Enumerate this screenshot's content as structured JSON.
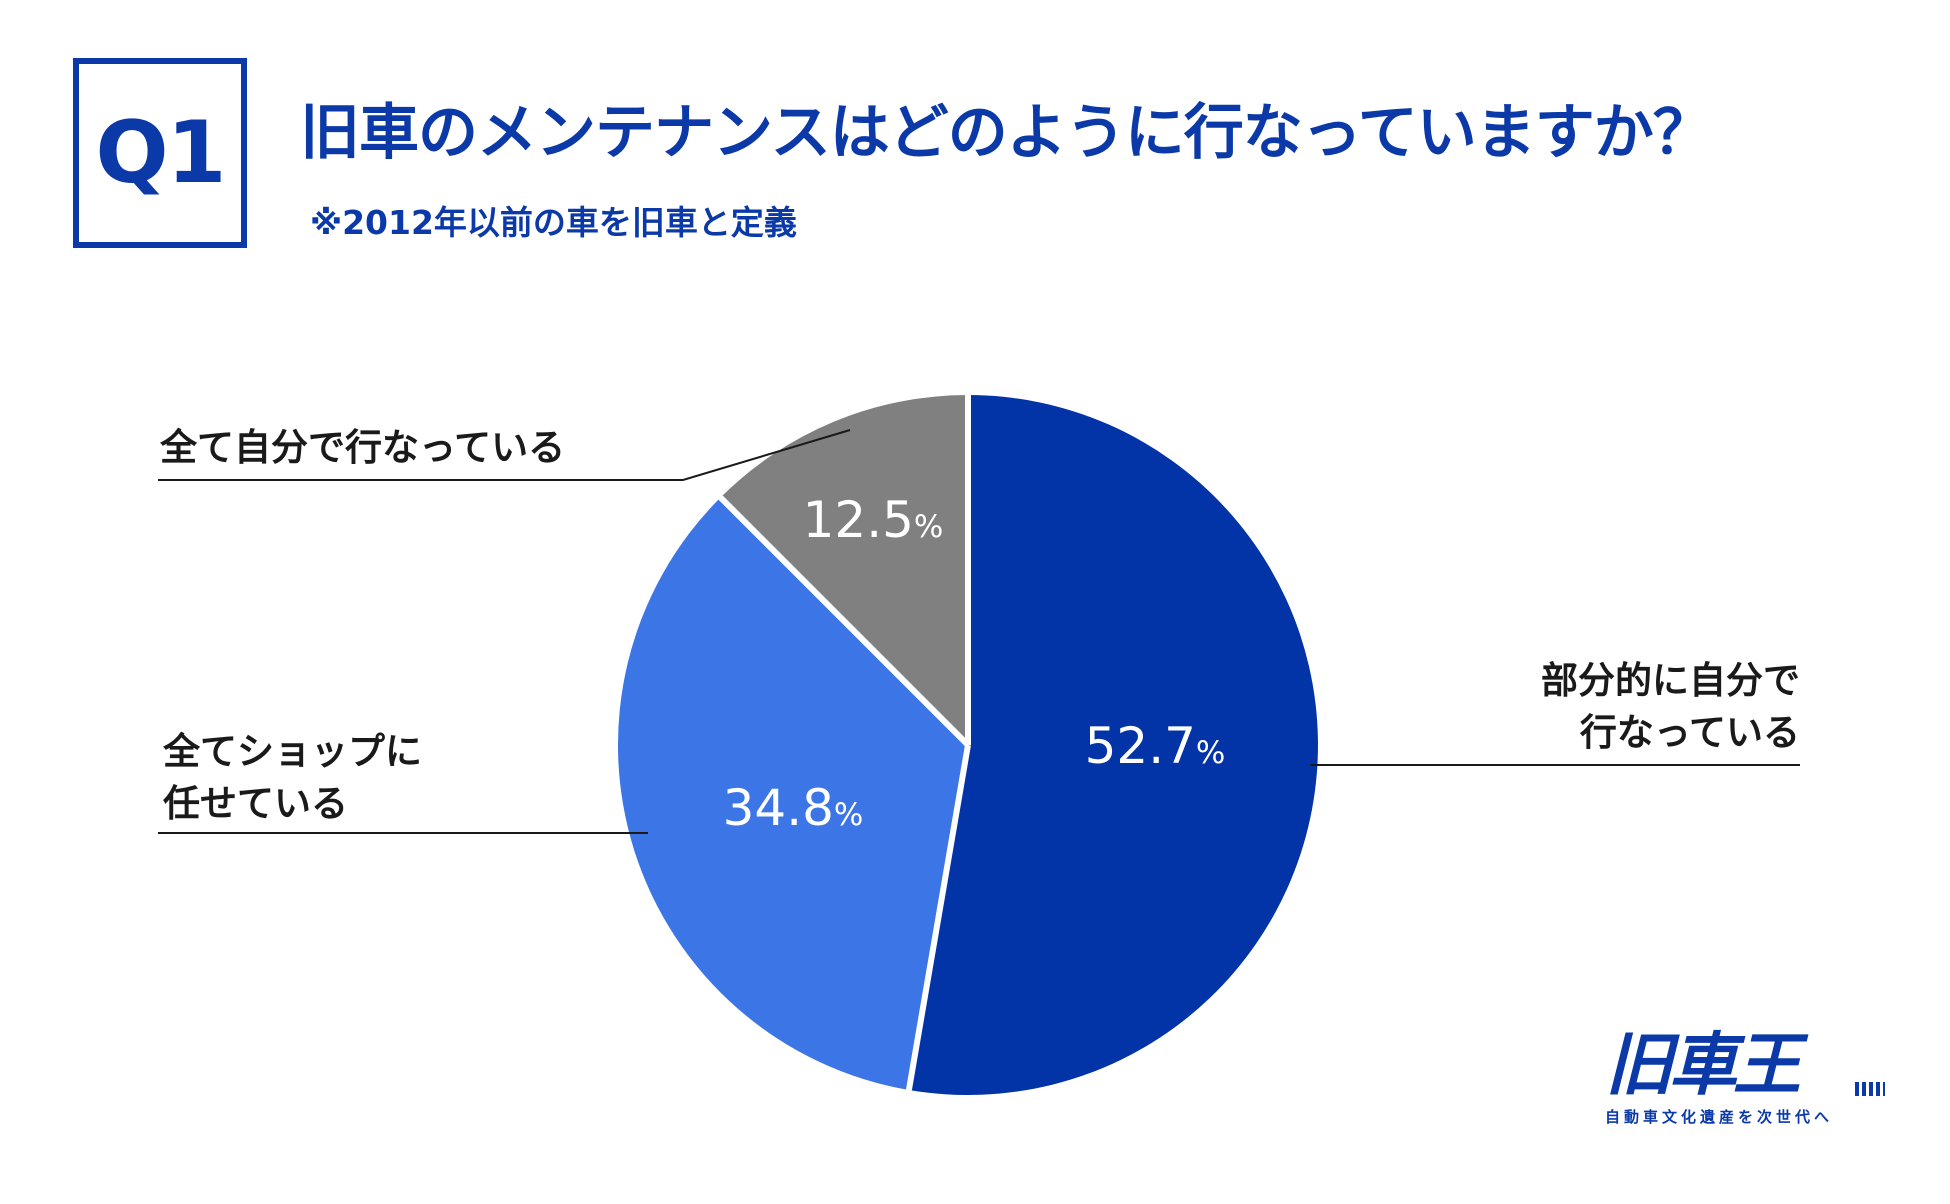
{
  "header": {
    "badge": "Q1",
    "title": "旧車のメンテナンスはどのように行なっていますか？",
    "subtitle": "※2012年以前の車を旧車と定義"
  },
  "chart_data": {
    "type": "pie",
    "slices": [
      {
        "label": "部分的に自分で行なっている",
        "label_lines": [
          "部分的に自分で",
          "行なっている"
        ],
        "value": 52.7,
        "display": "52.7",
        "color": "#0234a8"
      },
      {
        "label": "全てショップに任せている",
        "label_lines": [
          "全てショップに",
          "任せている"
        ],
        "value": 34.8,
        "display": "34.8",
        "color": "#3c75e5"
      },
      {
        "label": "全て自分で行なっている",
        "label_lines": [
          "全て自分で行なっている"
        ],
        "value": 12.5,
        "display": "12.5",
        "color": "#808080"
      }
    ],
    "unit": "%",
    "start": "12 o'clock",
    "direction": "clockwise"
  },
  "logo": {
    "mark": "旧車王",
    "tagline": "自動車文化遺産を次世代へ"
  },
  "colors": {
    "brand": "#0b3aa8",
    "leader_line": "#1a1a1a"
  }
}
